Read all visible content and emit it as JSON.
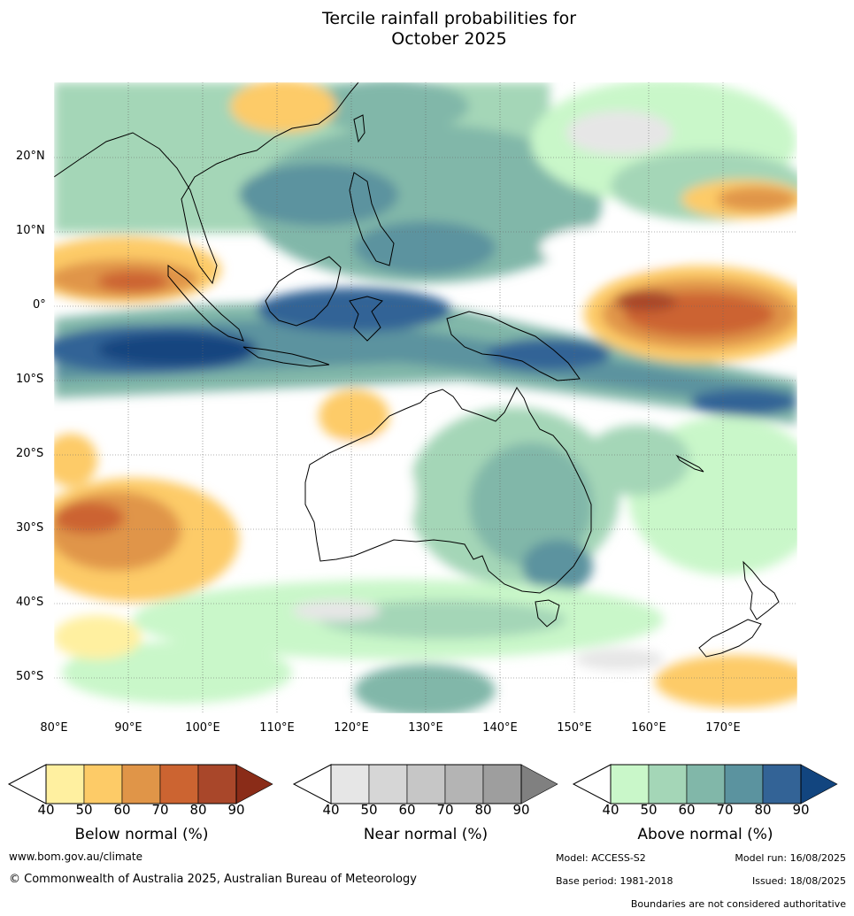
{
  "title_line1": "Tercile rainfall probabilities for",
  "title_line2": "October 2025",
  "lat_labels": [
    "20°N",
    "10°N",
    "0°",
    "10°S",
    "20°S",
    "30°S",
    "40°S",
    "50°S"
  ],
  "lon_labels": [
    "80°E",
    "90°E",
    "100°E",
    "110°E",
    "120°E",
    "130°E",
    "140°E",
    "150°E",
    "160°E",
    "170°E"
  ],
  "colorbars": [
    {
      "title": "Below normal (%)",
      "ticks": [
        "40",
        "50",
        "60",
        "70",
        "80",
        "90"
      ],
      "colors": [
        "#fff0a0",
        "#fdcb67",
        "#e09548",
        "#cc6431",
        "#a9472a",
        "#8a2c18"
      ]
    },
    {
      "title": "Near normal (%)",
      "ticks": [
        "40",
        "50",
        "60",
        "70",
        "80",
        "90"
      ],
      "colors": [
        "#e6e6e6",
        "#d6d6d6",
        "#c6c6c6",
        "#b4b4b4",
        "#9e9e9e",
        "#808080"
      ]
    },
    {
      "title": "Above normal (%)",
      "ticks": [
        "40",
        "50",
        "60",
        "70",
        "80",
        "90"
      ],
      "colors": [
        "#c9f7c9",
        "#a4d6b7",
        "#81b7a9",
        "#5b939f",
        "#336396",
        "#12457f"
      ]
    }
  ],
  "footer": {
    "website": "www.bom.gov.au/climate",
    "copyright": "© Commonwealth of Australia 2025, Australian Bureau of Meteorology",
    "model": "Model: ACCESS-S2",
    "model_run": "Model run: 16/08/2025",
    "base_period": "Base period: 1981-2018",
    "issued": "Issued: 18/08/2025",
    "disclaimer": "Boundaries are not considered authoritative"
  }
}
